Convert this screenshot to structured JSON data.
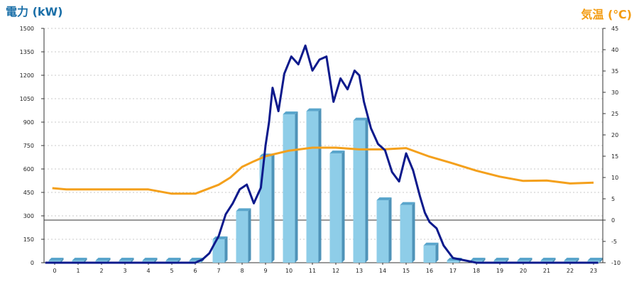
{
  "chart_data": {
    "type": "bar",
    "ylabel_left": "電力 (kW)",
    "ylabel_right": "気温 (℃)",
    "categories": [
      "0",
      "1",
      "2",
      "3",
      "4",
      "5",
      "6",
      "7",
      "8",
      "9",
      "10",
      "11",
      "12",
      "13",
      "14",
      "15",
      "16",
      "17",
      "18",
      "19",
      "20",
      "21",
      "22",
      "23"
    ],
    "yticks_left": [
      "0",
      "150",
      "300",
      "450",
      "600",
      "750",
      "900",
      "1050",
      "1200",
      "1350",
      "1500"
    ],
    "yticks_right": [
      "-10",
      "-5",
      "0",
      "5",
      "10",
      "15",
      "20",
      "25",
      "30",
      "35",
      "40",
      "45"
    ],
    "ylim_left": [
      0,
      1500
    ],
    "ylim_right": [
      -10,
      45
    ],
    "grid": true,
    "series": [
      {
        "type": "bar",
        "axis": "left",
        "color": "#8ecde8",
        "values": [
          0,
          0,
          0,
          0,
          0,
          0,
          0,
          150,
          330,
          680,
          950,
          970,
          700,
          910,
          400,
          370,
          110,
          0,
          0,
          0,
          0,
          0,
          0,
          0
        ]
      },
      {
        "type": "line",
        "axis": "left",
        "color": "#0d1a8c",
        "x": [
          -0.4,
          0,
          1,
          2,
          3,
          4,
          5,
          5.6,
          6,
          6.3,
          6.6,
          6.85,
          7,
          7.3,
          7.6,
          7.9,
          8.2,
          8.5,
          8.8,
          9.0,
          9.15,
          9.3,
          9.55,
          9.8,
          10.1,
          10.4,
          10.7,
          11.0,
          11.3,
          11.6,
          11.9,
          12.2,
          12.5,
          12.8,
          13.0,
          13.2,
          13.5,
          13.8,
          14.1,
          14.4,
          14.7,
          15.0,
          15.3,
          15.6,
          15.8,
          16.0,
          16.3,
          16.6,
          17,
          18,
          19,
          20,
          21,
          22,
          23.2
        ],
        "y": [
          0,
          0,
          0,
          0,
          0,
          0,
          0,
          0,
          0,
          20,
          60,
          130,
          170,
          310,
          380,
          470,
          500,
          380,
          480,
          750,
          900,
          1120,
          970,
          1210,
          1320,
          1270,
          1390,
          1230,
          1300,
          1320,
          1030,
          1180,
          1110,
          1230,
          1200,
          1030,
          860,
          760,
          720,
          580,
          520,
          700,
          590,
          420,
          320,
          260,
          220,
          110,
          30,
          0,
          0,
          0,
          0,
          0,
          0
        ]
      },
      {
        "type": "line",
        "axis": "right",
        "color": "#f4a01c",
        "x": [
          -0.1,
          0.5,
          1,
          2,
          3,
          4,
          5,
          6,
          7,
          7.5,
          8,
          8.5,
          9,
          10,
          11,
          12,
          13,
          14,
          15,
          16,
          17,
          18,
          19,
          20,
          21,
          22,
          23
        ],
        "y": [
          7.5,
          7.2,
          7.2,
          7.2,
          7.2,
          7.2,
          6.2,
          6.2,
          8.3,
          10.0,
          12.5,
          13.8,
          15.0,
          16.3,
          17.0,
          17.0,
          16.6,
          16.6,
          16.9,
          14.9,
          13.3,
          11.6,
          10.2,
          9.2,
          9.3,
          8.6,
          8.8
        ]
      }
    ]
  }
}
